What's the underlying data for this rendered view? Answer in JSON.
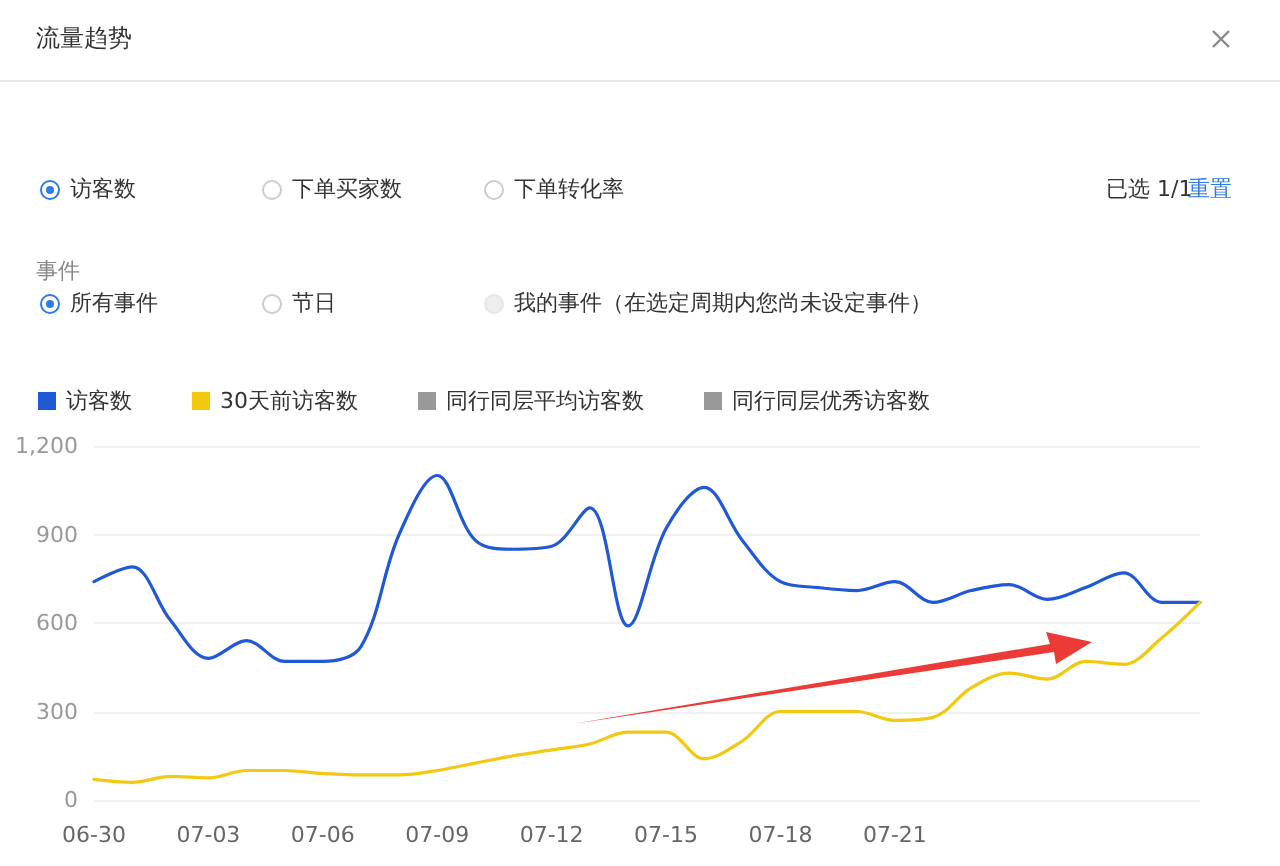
{
  "chart_data": {
    "type": "line",
    "title": "流量趋势",
    "annotations": [
      "访客数",
      "下单买家数",
      "下单转化率",
      "已选 1/1",
      "重置",
      "事件",
      "所有事件",
      "节日",
      "我的事件（在选定周期内您尚未设定事件）"
    ],
    "categories": [
      "06-30",
      null,
      null,
      "07-03",
      null,
      null,
      "07-06",
      null,
      null,
      "07-09",
      null,
      null,
      "07-12",
      null,
      null,
      "07-15",
      null,
      null,
      "07-18",
      null,
      null,
      "07-21",
      null,
      null,
      null,
      null,
      null,
      null,
      null,
      null
    ],
    "series": [
      {
        "name": "访客数",
        "color": "#2058d6",
        "values": [
          740,
          790,
          610,
          480,
          540,
          470,
          470,
          520,
          900,
          1100,
          880,
          850,
          860,
          990,
          590,
          920,
          1060,
          880,
          740,
          720,
          710,
          740,
          670,
          710,
          730,
          680,
          720,
          770,
          670,
          670
        ]
      },
      {
        "name": "30天前访客数",
        "color": "#f2c811",
        "values": [
          70,
          60,
          80,
          75,
          100,
          100,
          90,
          85,
          85,
          100,
          125,
          150,
          170,
          190,
          230,
          230,
          140,
          200,
          300,
          300,
          300,
          270,
          280,
          380,
          430,
          410,
          470,
          460,
          550,
          670
        ]
      },
      {
        "name": "同行同层平均访客数",
        "color": "#999999",
        "values": [
          null,
          null,
          null,
          null,
          null,
          null,
          null,
          null,
          null,
          null,
          null,
          null,
          null,
          null,
          null,
          null,
          null,
          null,
          null,
          null,
          null,
          null,
          null,
          null,
          null,
          null,
          null,
          null,
          null,
          null
        ]
      },
      {
        "name": "同行同层优秀访客数",
        "color": "#999999",
        "values": [
          null,
          null,
          null,
          null,
          null,
          null,
          null,
          null,
          null,
          null,
          null,
          null,
          null,
          null,
          null,
          null,
          null,
          null,
          null,
          null,
          null,
          null,
          null,
          null,
          null,
          null,
          null,
          null,
          null,
          null
        ]
      }
    ],
    "ylim": [
      0,
      1200
    ],
    "yticks": [
      0,
      300,
      600,
      900,
      {
        "value": 1200,
        "label": "1,200"
      }
    ],
    "grid": "y",
    "legend": "top left",
    "marker": "none",
    "line_style": "solid"
  }
}
